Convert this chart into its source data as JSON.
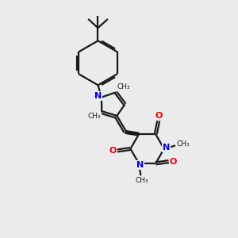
{
  "bg_color": "#ebebeb",
  "bond_color": "#1a1a1a",
  "nitrogen_color": "#0000ee",
  "oxygen_color": "#ee0000",
  "line_width": 1.6,
  "dbo": 0.05,
  "figsize": [
    3.0,
    3.0
  ],
  "dpi": 100,
  "xlim": [
    0,
    10
  ],
  "ylim": [
    0,
    10
  ]
}
